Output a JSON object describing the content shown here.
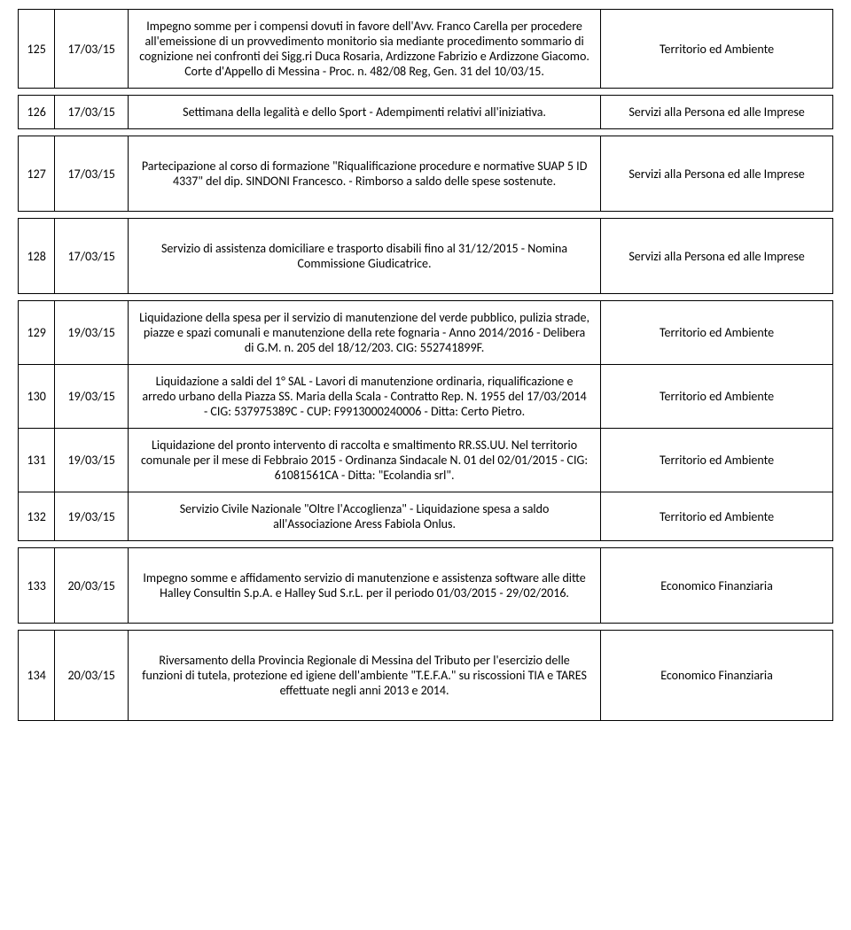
{
  "rows": [
    {
      "num": "125",
      "date": "17/03/15",
      "description": "Impegno somme per i compensi dovuti in favore dell'Avv. Franco Carella per procedere all'emeissione di un provvedimento monitorio sia mediante procedimento sommario di cognizione nei confronti dei Sigg.ri Duca Rosaria, Ardizzone Fabrizio e Ardizzone Giacomo. Corte d'Appello di Messina - Proc. n. 482/08 Reg, Gen. 31 del 10/03/15.",
      "category": "Territorio ed Ambiente",
      "separator_after": true
    },
    {
      "num": "126",
      "date": "17/03/15",
      "description": "Settimana della legalità e dello Sport - Adempimenti relativi all'iniziativa.",
      "category": "Servizi alla Persona ed alle Imprese",
      "separator_after": true
    },
    {
      "num": "127",
      "date": "17/03/15",
      "description": "Partecipazione al corso di formazione \"Riqualificazione procedure e normative SUAP 5 ID 4337\" del dip. SINDONI Francesco. - Rimborso a saldo delle spese sostenute.",
      "category": "Servizi alla Persona ed alle Imprese",
      "separator_after": true,
      "height_class": "medium"
    },
    {
      "num": "128",
      "date": "17/03/15",
      "description": "Servizio di assistenza domiciliare e trasporto disabili fino al 31/12/2015 - Nomina Commissione Giudicatrice.",
      "category": "Servizi alla Persona ed alle Imprese",
      "separator_after": true,
      "height_class": "medium"
    },
    {
      "num": "129",
      "date": "19/03/15",
      "description": "Liquidazione della spesa per il servizio di manutenzione del verde pubblico, pulizia strade, piazze e spazi comunali e manutenzione della rete fognaria - Anno 2014/2016 - Delibera di G.M. n. 205 del 18/12/203. CIG: 552741899F.",
      "category": "Territorio ed Ambiente",
      "separator_after": false
    },
    {
      "num": "130",
      "date": "19/03/15",
      "description": "Liquidazione a saldi del 1° SAL - Lavori di manutenzione ordinaria, riqualificazione e arredo urbano della Piazza SS. Maria della Scala - Contratto Rep. N. 1955 del 17/03/2014 - CIG: 537975389C - CUP: F9913000240006 - Ditta: Certo Pietro.",
      "category": "Territorio ed Ambiente",
      "separator_after": false
    },
    {
      "num": "131",
      "date": "19/03/15",
      "description": "Liquidazione del pronto intervento di raccolta e smaltimento RR.SS.UU. Nel territorio comunale per il mese di Febbraio 2015 - Ordinanza Sindacale N. 01 del 02/01/2015 - CIG: 61081561CA - Ditta: \"Ecolandia srl\".",
      "category": "Territorio ed Ambiente",
      "separator_after": false
    },
    {
      "num": "132",
      "date": "19/03/15",
      "description": "Servizio Civile Nazionale \"Oltre l'Accoglienza\" - Liquidazione spesa a saldo all'Associazione Aress Fabiola Onlus.",
      "category": "Territorio ed Ambiente",
      "separator_after": true
    },
    {
      "num": "133",
      "date": "20/03/15",
      "description": "Impegno somme e affidamento servizio di manutenzione e assistenza software alle ditte Halley Consultin S.p.A. e Halley Sud S.r.L. per il periodo 01/03/2015 - 29/02/2016.",
      "category": "Economico Finanziaria",
      "separator_after": true,
      "height_class": "medium"
    },
    {
      "num": "134",
      "date": "20/03/15",
      "description": "Riversamento della Provincia Regionale di Messina del Tributo per l'esercizio delle funzioni di tutela, protezione ed igiene dell'ambiente \"T.E.F.A.\" su riscossioni TIA e TARES effettuate negli anni 2013 e 2014.",
      "category": "Economico Finanziaria",
      "separator_after": false,
      "height_class": "medium"
    }
  ],
  "colors": {
    "border": "#000000",
    "background": "#ffffff",
    "text": "#000000"
  },
  "font": {
    "family": "Calibri, Arial, sans-serif",
    "size": 14
  }
}
